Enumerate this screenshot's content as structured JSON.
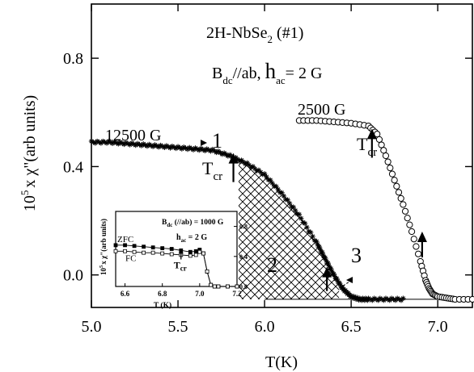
{
  "chart_data": [
    {
      "type": "scatter",
      "title": "2H-NbSe",
      "title_sub": "2",
      "title_suffix": " (#1)",
      "field_line": {
        "b": "B",
        "b_sub": "dc",
        "b_rest": "//ab, ",
        "h": "h",
        "h_sub": "ac",
        "h_rest": "= 2 G"
      },
      "xlabel": "T(K)",
      "ylabel": "10",
      "ylabel_sup": "5",
      "ylabel_rest": "x χ\"(arb units)",
      "xlim": [
        5.0,
        7.2
      ],
      "ylim": [
        -0.12,
        1.0
      ],
      "xticks": [
        "5.0",
        "5.5",
        "6.0",
        "6.5",
        "7.0"
      ],
      "xtick_values": [
        5.0,
        5.5,
        6.0,
        6.5,
        7.0
      ],
      "yticks": [
        "0.0",
        "0.4",
        "0.8"
      ],
      "ytick_values": [
        0.0,
        0.4,
        0.8
      ],
      "grid": false,
      "baseline_y": -0.09,
      "series": [
        {
          "name": "12500 G",
          "marker": "star",
          "x": [
            5.0,
            5.1,
            5.2,
            5.3,
            5.4,
            5.5,
            5.6,
            5.7,
            5.8,
            5.9,
            6.0,
            6.1,
            6.2,
            6.3,
            6.35,
            6.4,
            6.45,
            6.5,
            6.55,
            6.6,
            6.7,
            6.8
          ],
          "y": [
            0.49,
            0.49,
            0.485,
            0.48,
            0.475,
            0.47,
            0.465,
            0.46,
            0.44,
            0.41,
            0.37,
            0.3,
            0.22,
            0.12,
            0.06,
            0.0,
            -0.05,
            -0.08,
            -0.09,
            -0.09,
            -0.09,
            -0.09
          ]
        },
        {
          "name": "2500 G",
          "marker": "circle",
          "x": [
            6.2,
            6.3,
            6.4,
            6.5,
            6.6,
            6.65,
            6.7,
            6.75,
            6.8,
            6.85,
            6.9,
            6.93,
            6.95,
            6.97,
            7.0,
            7.05,
            7.1,
            7.2
          ],
          "y": [
            0.57,
            0.57,
            0.565,
            0.56,
            0.55,
            0.52,
            0.44,
            0.35,
            0.26,
            0.16,
            0.05,
            -0.02,
            -0.05,
            -0.07,
            -0.08,
            -0.085,
            -0.09,
            -0.09
          ]
        }
      ],
      "annotations": {
        "label_12500": "12500 G",
        "label_2500": "2500 G",
        "region_1": "1",
        "region_2": "2",
        "region_3": "3",
        "tcr_main": "T",
        "tcr_main_sub": "cr",
        "tcr_right": "T",
        "tcr_right_sub": "cr",
        "arrow_12500_tcr": [
          5.82,
          0.45
        ],
        "arrow_12500_drop": [
          6.36,
          0.03
        ],
        "arrow_2500_tcr": [
          6.62,
          0.54
        ],
        "arrow_2500_drop": [
          6.91,
          0.16
        ]
      }
    },
    {
      "type": "line",
      "title_b": "B",
      "title_b_sub": "dc",
      "title_b_rest": " (//ab) = 1000 G",
      "title_h": "h",
      "title_h_sub": "ac",
      "title_h_rest": " = 2 G",
      "xlabel": "T (K)",
      "ylabel": "10",
      "ylabel_sup": "5",
      "ylabel_rest": "x χ\"(arb units)",
      "xlim": [
        6.55,
        7.2
      ],
      "ylim": [
        0.0,
        1.0
      ],
      "xticks": [
        "6.6",
        "6.8",
        "7.0",
        "7.2"
      ],
      "xtick_values": [
        6.6,
        6.8,
        7.0,
        7.2
      ],
      "yticks": [
        "0.0",
        "0.4",
        "0.8"
      ],
      "ytick_values": [
        0.0,
        0.4,
        0.8
      ],
      "tcr_label": "T",
      "tcr_sub": "cr",
      "tcr_arrow_x": 6.9,
      "series": [
        {
          "name": "ZFC",
          "marker": "filled-square",
          "x": [
            6.55,
            6.6,
            6.65,
            6.7,
            6.75,
            6.8,
            6.85,
            6.9,
            6.95,
            6.98,
            7.0,
            7.02,
            7.04,
            7.06,
            7.08,
            7.1,
            7.15,
            7.2
          ],
          "y": [
            0.55,
            0.55,
            0.54,
            0.53,
            0.52,
            0.51,
            0.5,
            0.48,
            0.46,
            0.47,
            0.49,
            0.44,
            0.2,
            0.02,
            0.0,
            0.0,
            0.0,
            0.0
          ]
        },
        {
          "name": "FC",
          "marker": "open-square",
          "x": [
            6.55,
            6.6,
            6.65,
            6.7,
            6.75,
            6.8,
            6.85,
            6.9,
            6.95,
            6.98,
            7.0,
            7.02,
            7.04,
            7.06,
            7.08,
            7.1,
            7.15,
            7.2
          ],
          "y": [
            0.47,
            0.47,
            0.46,
            0.45,
            0.45,
            0.44,
            0.43,
            0.42,
            0.41,
            0.42,
            0.46,
            0.44,
            0.2,
            0.02,
            0.0,
            0.0,
            0.0,
            0.0
          ]
        }
      ]
    }
  ]
}
